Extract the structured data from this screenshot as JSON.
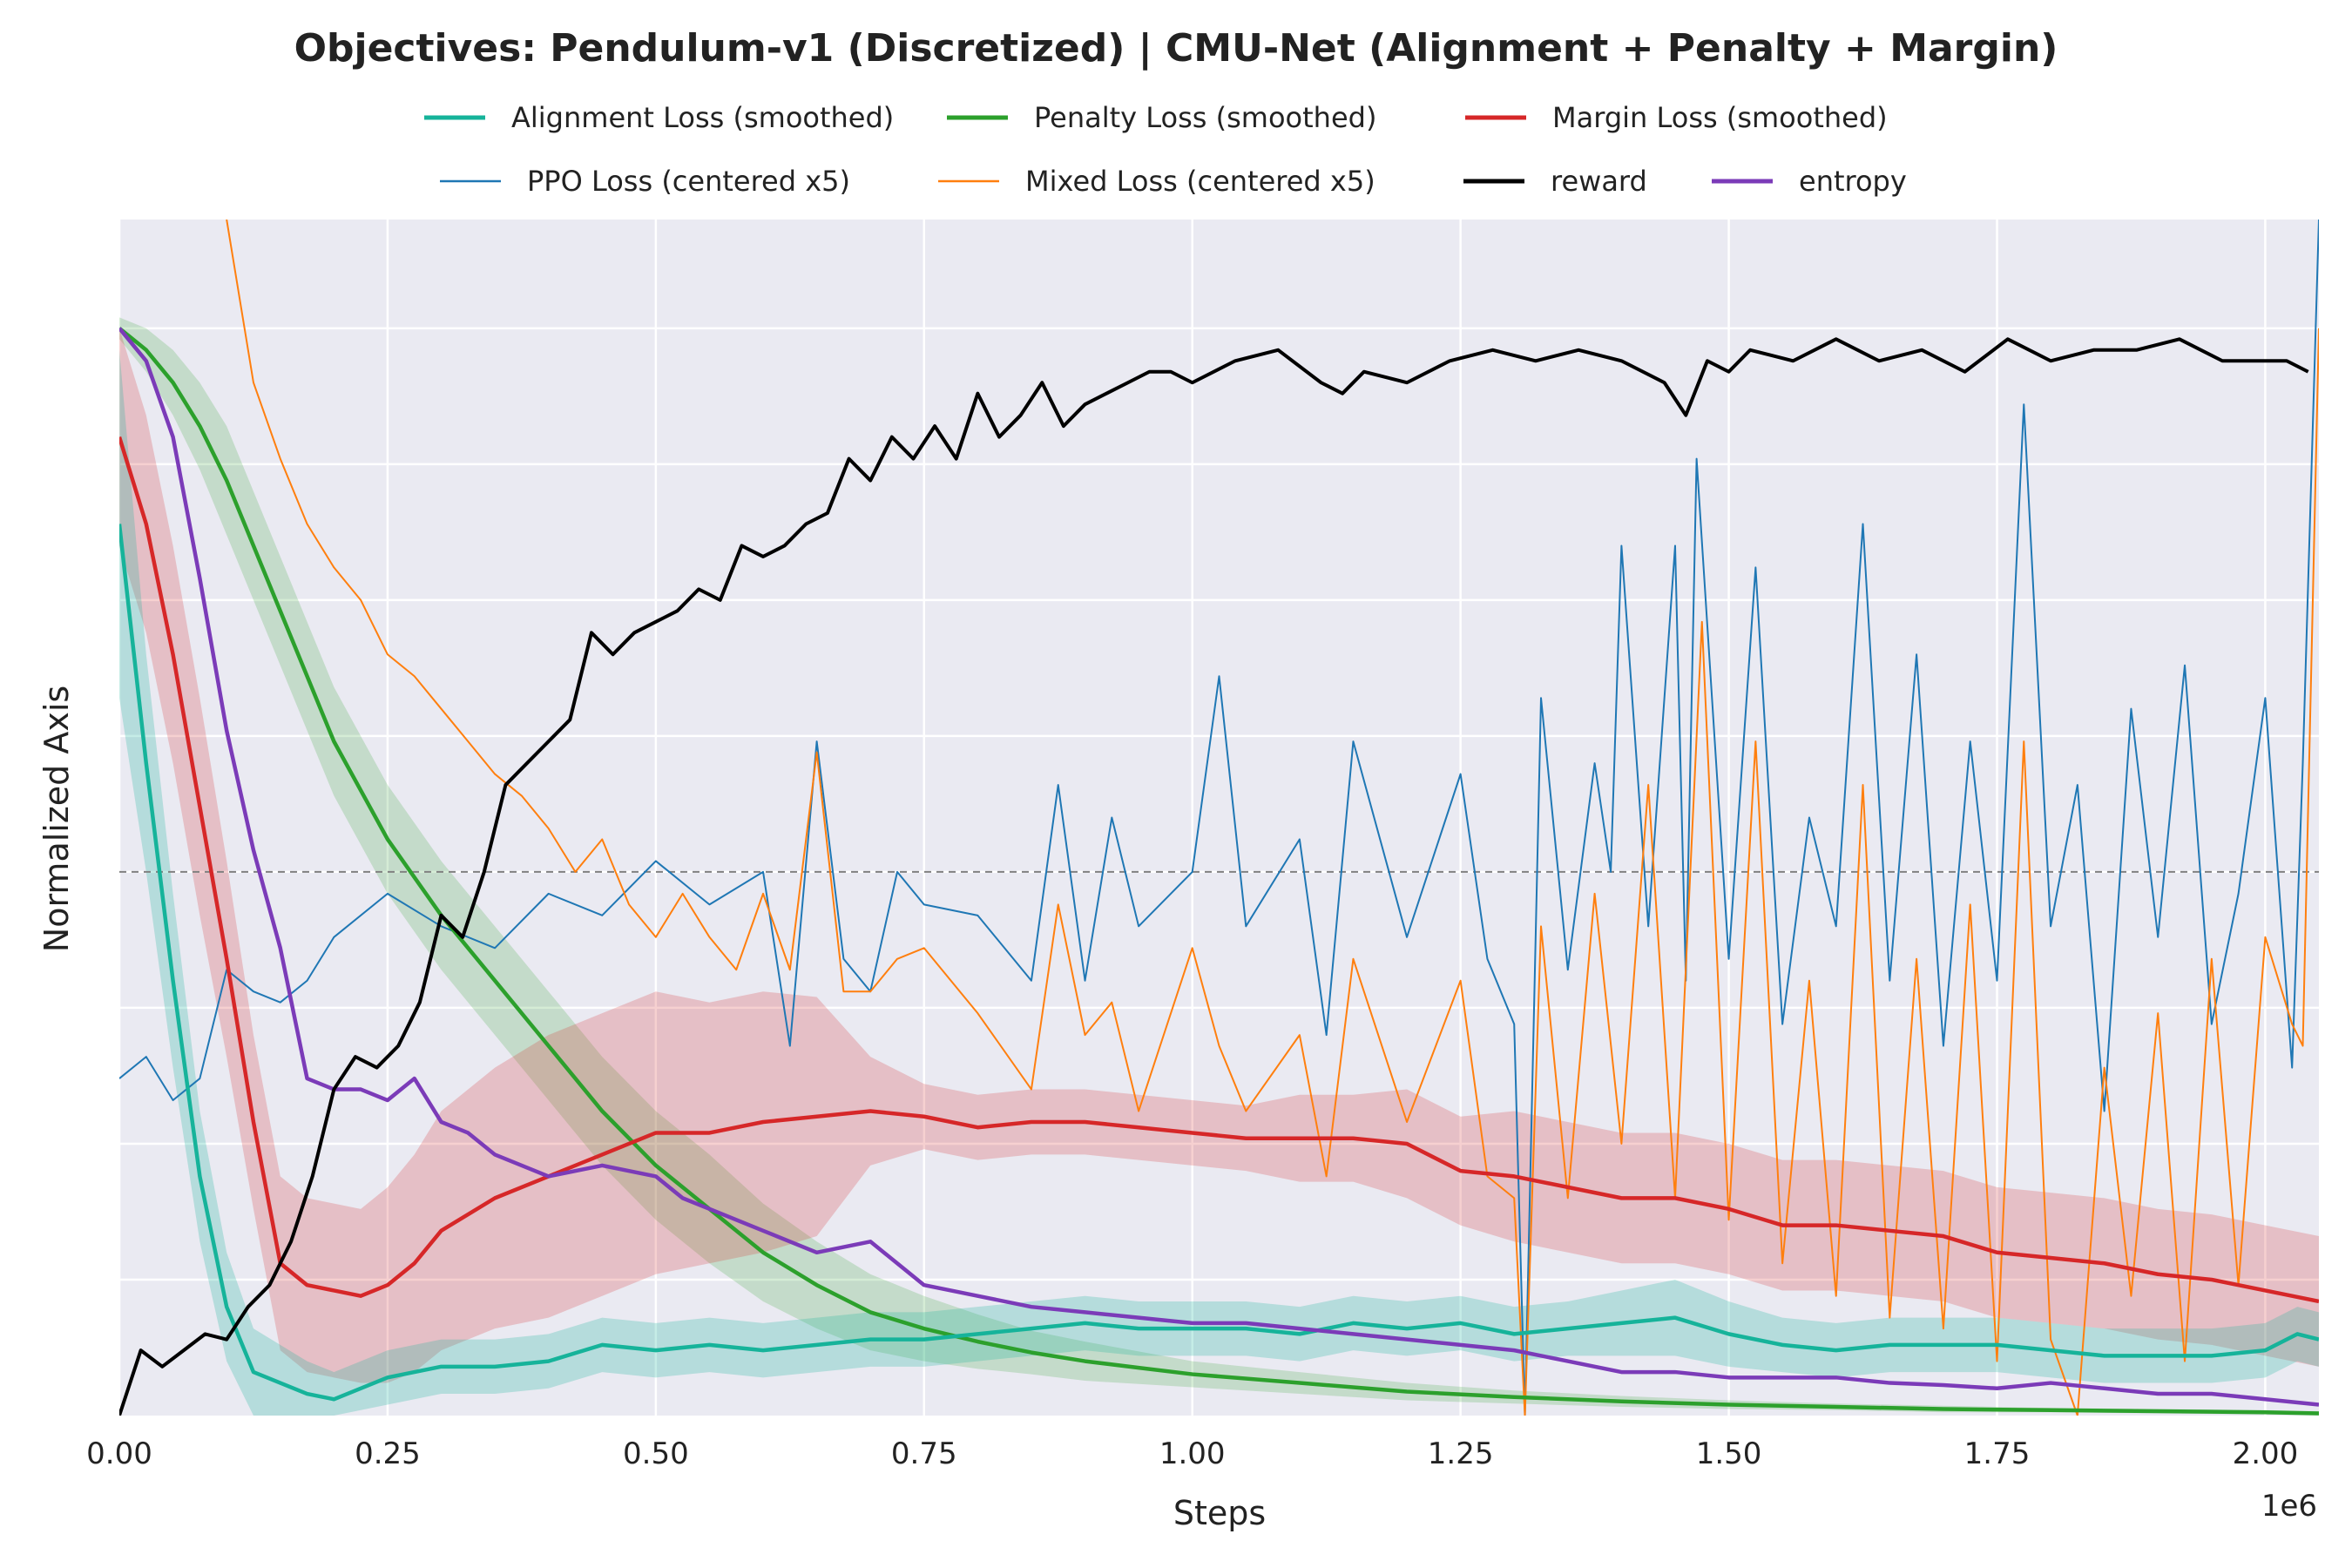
{
  "chart_data": {
    "type": "line",
    "title": "Objectives: Pendulum-v1 (Discretized) | CMU-Net (Alignment + Penalty + Margin)",
    "xlabel": "Steps",
    "ylabel": "Normalized Axis",
    "x_scale_label": "1e6",
    "xlim": [
      0,
      2050000
    ],
    "ylim": [
      0,
      1.1
    ],
    "x_ticks": [
      0,
      0.25,
      0.5,
      0.75,
      1.0,
      1.25,
      1.5,
      1.75,
      2.0
    ],
    "x_tick_labels": [
      "0.00",
      "0.25",
      "0.50",
      "0.75",
      "1.00",
      "1.25",
      "1.50",
      "1.75",
      "2.00"
    ],
    "y_gridlines": [
      0.125,
      0.25,
      0.375,
      0.5,
      0.625,
      0.75,
      0.875,
      1.0
    ],
    "reference_line_y": 0.5,
    "grid": true,
    "legend_position": "top-center",
    "colors": {
      "alignment": "#16b39a",
      "penalty": "#2ca02c",
      "margin": "#d62728",
      "ppo": "#1f77b4",
      "mixed": "#ff7f0e",
      "reward": "#000000",
      "entropy": "#7b3bb8",
      "plot_background": "#eaeaf2",
      "reference_line": "#808080"
    },
    "series": [
      {
        "key": "alignment",
        "name": "Alignment Loss (smoothed)",
        "x": [
          0,
          0.025,
          0.05,
          0.075,
          0.1,
          0.125,
          0.15,
          0.175,
          0.2,
          0.25,
          0.3,
          0.35,
          0.4,
          0.45,
          0.5,
          0.55,
          0.6,
          0.65,
          0.7,
          0.75,
          0.8,
          0.85,
          0.9,
          0.95,
          1.0,
          1.05,
          1.1,
          1.15,
          1.2,
          1.25,
          1.3,
          1.35,
          1.4,
          1.45,
          1.5,
          1.55,
          1.6,
          1.65,
          1.7,
          1.75,
          1.8,
          1.85,
          1.9,
          1.95,
          2.0,
          2.03,
          2.05
        ],
        "values": [
          0.82,
          0.6,
          0.4,
          0.22,
          0.1,
          0.04,
          0.03,
          0.02,
          0.015,
          0.035,
          0.045,
          0.045,
          0.05,
          0.065,
          0.06,
          0.065,
          0.06,
          0.065,
          0.07,
          0.07,
          0.075,
          0.08,
          0.085,
          0.08,
          0.08,
          0.08,
          0.075,
          0.085,
          0.08,
          0.085,
          0.075,
          0.08,
          0.085,
          0.09,
          0.075,
          0.065,
          0.06,
          0.065,
          0.065,
          0.065,
          0.06,
          0.055,
          0.055,
          0.055,
          0.06,
          0.075,
          0.07
        ],
        "band": [
          0.16,
          0.1,
          0.08,
          0.06,
          0.05,
          0.04,
          0.035,
          0.03,
          0.025,
          0.025,
          0.025,
          0.025,
          0.025,
          0.025,
          0.025,
          0.025,
          0.025,
          0.025,
          0.025,
          0.025,
          0.025,
          0.025,
          0.025,
          0.025,
          0.025,
          0.025,
          0.025,
          0.025,
          0.025,
          0.025,
          0.025,
          0.025,
          0.03,
          0.035,
          0.03,
          0.025,
          0.025,
          0.025,
          0.025,
          0.025,
          0.025,
          0.025,
          0.025,
          0.025,
          0.025,
          0.025,
          0.025
        ]
      },
      {
        "key": "penalty",
        "name": "Penalty Loss (smoothed)",
        "x": [
          0,
          0.025,
          0.05,
          0.075,
          0.1,
          0.15,
          0.2,
          0.25,
          0.3,
          0.35,
          0.4,
          0.45,
          0.5,
          0.55,
          0.6,
          0.65,
          0.7,
          0.75,
          0.8,
          0.85,
          0.9,
          0.95,
          1.0,
          1.1,
          1.2,
          1.3,
          1.4,
          1.5,
          1.6,
          1.7,
          1.8,
          1.9,
          2.0,
          2.05
        ],
        "values": [
          1.0,
          0.98,
          0.95,
          0.91,
          0.86,
          0.74,
          0.62,
          0.53,
          0.46,
          0.4,
          0.34,
          0.28,
          0.23,
          0.19,
          0.15,
          0.12,
          0.095,
          0.08,
          0.068,
          0.058,
          0.05,
          0.044,
          0.038,
          0.03,
          0.022,
          0.017,
          0.013,
          0.01,
          0.008,
          0.006,
          0.005,
          0.004,
          0.003,
          0.002
        ],
        "band": [
          0.01,
          0.02,
          0.03,
          0.04,
          0.05,
          0.05,
          0.05,
          0.05,
          0.05,
          0.05,
          0.05,
          0.05,
          0.05,
          0.05,
          0.045,
          0.04,
          0.035,
          0.03,
          0.025,
          0.02,
          0.018,
          0.015,
          0.012,
          0.01,
          0.008,
          0.006,
          0.005,
          0.004,
          0.003,
          0.003,
          0.002,
          0.002,
          0.002,
          0.002
        ]
      },
      {
        "key": "margin",
        "name": "Margin Loss (smoothed)",
        "x": [
          0,
          0.025,
          0.05,
          0.075,
          0.1,
          0.125,
          0.15,
          0.175,
          0.2,
          0.225,
          0.25,
          0.275,
          0.3,
          0.35,
          0.4,
          0.45,
          0.5,
          0.55,
          0.6,
          0.65,
          0.7,
          0.75,
          0.8,
          0.85,
          0.9,
          0.95,
          1.0,
          1.05,
          1.1,
          1.15,
          1.2,
          1.25,
          1.3,
          1.35,
          1.4,
          1.45,
          1.5,
          1.55,
          1.6,
          1.65,
          1.7,
          1.75,
          1.8,
          1.85,
          1.9,
          1.95,
          2.0,
          2.05
        ],
        "values": [
          0.9,
          0.82,
          0.7,
          0.56,
          0.42,
          0.27,
          0.14,
          0.12,
          0.115,
          0.11,
          0.12,
          0.14,
          0.17,
          0.2,
          0.22,
          0.24,
          0.26,
          0.26,
          0.27,
          0.275,
          0.28,
          0.275,
          0.265,
          0.27,
          0.27,
          0.265,
          0.26,
          0.255,
          0.255,
          0.255,
          0.25,
          0.225,
          0.22,
          0.21,
          0.2,
          0.2,
          0.19,
          0.175,
          0.175,
          0.17,
          0.165,
          0.15,
          0.145,
          0.14,
          0.13,
          0.125,
          0.115,
          0.105
        ],
        "band": [
          0.1,
          0.1,
          0.1,
          0.1,
          0.09,
          0.08,
          0.08,
          0.08,
          0.08,
          0.08,
          0.09,
          0.1,
          0.11,
          0.12,
          0.13,
          0.13,
          0.13,
          0.12,
          0.12,
          0.11,
          0.05,
          0.03,
          0.03,
          0.03,
          0.03,
          0.03,
          0.03,
          0.03,
          0.04,
          0.04,
          0.05,
          0.05,
          0.06,
          0.06,
          0.06,
          0.06,
          0.06,
          0.06,
          0.06,
          0.06,
          0.06,
          0.06,
          0.06,
          0.06,
          0.06,
          0.06,
          0.06,
          0.06
        ]
      },
      {
        "key": "ppo",
        "name": "PPO Loss (centered x5)",
        "x": [
          0,
          0.025,
          0.05,
          0.075,
          0.1,
          0.125,
          0.15,
          0.175,
          0.2,
          0.25,
          0.3,
          0.35,
          0.4,
          0.45,
          0.5,
          0.55,
          0.6,
          0.625,
          0.65,
          0.675,
          0.7,
          0.725,
          0.75,
          0.8,
          0.85,
          0.875,
          0.9,
          0.925,
          0.95,
          1.0,
          1.025,
          1.05,
          1.1,
          1.125,
          1.15,
          1.2,
          1.25,
          1.275,
          1.3,
          1.31,
          1.325,
          1.35,
          1.375,
          1.39,
          1.4,
          1.425,
          1.45,
          1.46,
          1.47,
          1.5,
          1.525,
          1.55,
          1.575,
          1.6,
          1.625,
          1.65,
          1.675,
          1.7,
          1.725,
          1.75,
          1.775,
          1.8,
          1.825,
          1.85,
          1.875,
          1.9,
          1.925,
          1.95,
          1.975,
          2.0,
          2.025,
          2.035,
          2.05
        ],
        "values": [
          0.31,
          0.33,
          0.29,
          0.31,
          0.41,
          0.39,
          0.38,
          0.4,
          0.44,
          0.48,
          0.45,
          0.43,
          0.48,
          0.46,
          0.51,
          0.47,
          0.5,
          0.34,
          0.62,
          0.42,
          0.39,
          0.5,
          0.47,
          0.46,
          0.4,
          0.58,
          0.4,
          0.55,
          0.45,
          0.5,
          0.68,
          0.45,
          0.53,
          0.35,
          0.62,
          0.44,
          0.59,
          0.42,
          0.36,
          0.0,
          0.66,
          0.41,
          0.6,
          0.5,
          0.8,
          0.45,
          0.8,
          0.4,
          0.88,
          0.42,
          0.78,
          0.36,
          0.55,
          0.45,
          0.82,
          0.4,
          0.7,
          0.34,
          0.62,
          0.4,
          0.93,
          0.45,
          0.58,
          0.28,
          0.65,
          0.44,
          0.69,
          0.36,
          0.48,
          0.66,
          0.32,
          0.6,
          1.1
        ]
      },
      {
        "key": "mixed",
        "name": "Mixed Loss (centered x5)",
        "x": [
          0.1,
          0.125,
          0.15,
          0.175,
          0.2,
          0.225,
          0.25,
          0.275,
          0.3,
          0.325,
          0.35,
          0.375,
          0.4,
          0.425,
          0.45,
          0.475,
          0.5,
          0.525,
          0.55,
          0.575,
          0.6,
          0.625,
          0.65,
          0.675,
          0.7,
          0.725,
          0.75,
          0.8,
          0.85,
          0.875,
          0.9,
          0.925,
          0.95,
          1.0,
          1.025,
          1.05,
          1.1,
          1.125,
          1.15,
          1.2,
          1.25,
          1.275,
          1.3,
          1.31,
          1.325,
          1.35,
          1.375,
          1.4,
          1.425,
          1.45,
          1.475,
          1.5,
          1.525,
          1.55,
          1.575,
          1.6,
          1.625,
          1.65,
          1.675,
          1.7,
          1.725,
          1.75,
          1.775,
          1.8,
          1.825,
          1.85,
          1.875,
          1.9,
          1.925,
          1.95,
          1.975,
          2.0,
          2.025,
          2.035,
          2.05
        ],
        "values": [
          1.1,
          0.95,
          0.88,
          0.82,
          0.78,
          0.75,
          0.7,
          0.68,
          0.65,
          0.62,
          0.59,
          0.57,
          0.54,
          0.5,
          0.53,
          0.47,
          0.44,
          0.48,
          0.44,
          0.41,
          0.48,
          0.41,
          0.61,
          0.39,
          0.39,
          0.42,
          0.43,
          0.37,
          0.3,
          0.47,
          0.35,
          0.38,
          0.28,
          0.43,
          0.34,
          0.28,
          0.35,
          0.22,
          0.42,
          0.27,
          0.4,
          0.22,
          0.2,
          0.0,
          0.45,
          0.2,
          0.48,
          0.25,
          0.58,
          0.2,
          0.73,
          0.18,
          0.62,
          0.14,
          0.4,
          0.11,
          0.58,
          0.09,
          0.42,
          0.08,
          0.47,
          0.05,
          0.62,
          0.07,
          0.0,
          0.32,
          0.11,
          0.37,
          0.05,
          0.42,
          0.12,
          0.44,
          0.36,
          0.34,
          1.0
        ]
      },
      {
        "key": "reward",
        "name": "reward",
        "x": [
          0,
          0.02,
          0.04,
          0.06,
          0.08,
          0.1,
          0.12,
          0.14,
          0.16,
          0.18,
          0.2,
          0.22,
          0.24,
          0.26,
          0.28,
          0.3,
          0.32,
          0.34,
          0.36,
          0.38,
          0.4,
          0.42,
          0.44,
          0.46,
          0.48,
          0.5,
          0.52,
          0.54,
          0.56,
          0.58,
          0.6,
          0.62,
          0.64,
          0.66,
          0.68,
          0.7,
          0.72,
          0.74,
          0.76,
          0.78,
          0.8,
          0.82,
          0.84,
          0.86,
          0.88,
          0.9,
          0.92,
          0.94,
          0.96,
          0.98,
          1.0,
          1.04,
          1.08,
          1.12,
          1.14,
          1.16,
          1.2,
          1.24,
          1.28,
          1.32,
          1.36,
          1.4,
          1.44,
          1.46,
          1.48,
          1.5,
          1.52,
          1.56,
          1.6,
          1.64,
          1.68,
          1.72,
          1.76,
          1.8,
          1.84,
          1.88,
          1.92,
          1.96,
          2.0,
          2.02,
          2.04
        ],
        "values": [
          0.0,
          0.06,
          0.045,
          0.06,
          0.075,
          0.07,
          0.1,
          0.12,
          0.16,
          0.22,
          0.3,
          0.33,
          0.32,
          0.34,
          0.38,
          0.46,
          0.44,
          0.5,
          0.58,
          0.6,
          0.62,
          0.64,
          0.72,
          0.7,
          0.72,
          0.73,
          0.74,
          0.76,
          0.75,
          0.8,
          0.79,
          0.8,
          0.82,
          0.83,
          0.88,
          0.86,
          0.9,
          0.88,
          0.91,
          0.88,
          0.94,
          0.9,
          0.92,
          0.95,
          0.91,
          0.93,
          0.94,
          0.95,
          0.96,
          0.96,
          0.95,
          0.97,
          0.98,
          0.95,
          0.94,
          0.96,
          0.95,
          0.97,
          0.98,
          0.97,
          0.98,
          0.97,
          0.95,
          0.92,
          0.97,
          0.96,
          0.98,
          0.97,
          0.99,
          0.97,
          0.98,
          0.96,
          0.99,
          0.97,
          0.98,
          0.98,
          0.99,
          0.97,
          0.97,
          0.97,
          0.96
        ]
      },
      {
        "key": "entropy",
        "name": "entropy",
        "x": [
          0,
          0.025,
          0.05,
          0.075,
          0.1,
          0.125,
          0.15,
          0.175,
          0.2,
          0.225,
          0.25,
          0.275,
          0.3,
          0.325,
          0.35,
          0.4,
          0.45,
          0.5,
          0.525,
          0.55,
          0.6,
          0.65,
          0.7,
          0.725,
          0.75,
          0.8,
          0.85,
          0.9,
          0.95,
          1.0,
          1.05,
          1.1,
          1.15,
          1.2,
          1.25,
          1.3,
          1.35,
          1.4,
          1.45,
          1.5,
          1.55,
          1.6,
          1.65,
          1.7,
          1.75,
          1.8,
          1.85,
          1.9,
          1.95,
          2.0,
          2.05
        ],
        "values": [
          1.0,
          0.97,
          0.9,
          0.77,
          0.63,
          0.52,
          0.43,
          0.31,
          0.3,
          0.3,
          0.29,
          0.31,
          0.27,
          0.26,
          0.24,
          0.22,
          0.23,
          0.22,
          0.2,
          0.19,
          0.17,
          0.15,
          0.16,
          0.14,
          0.12,
          0.11,
          0.1,
          0.095,
          0.09,
          0.085,
          0.085,
          0.08,
          0.075,
          0.07,
          0.065,
          0.06,
          0.05,
          0.04,
          0.04,
          0.035,
          0.035,
          0.035,
          0.03,
          0.028,
          0.025,
          0.03,
          0.025,
          0.02,
          0.02,
          0.015,
          0.01
        ]
      }
    ]
  }
}
